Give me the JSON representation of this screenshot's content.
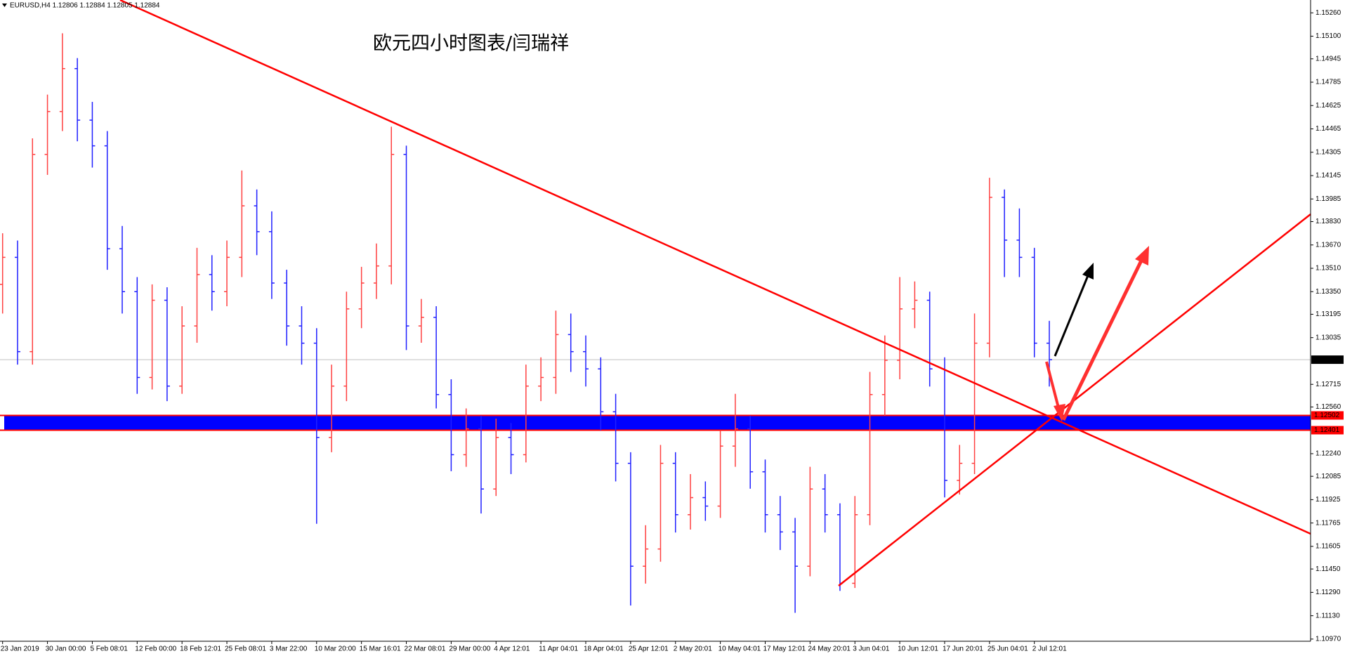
{
  "chart_data": {
    "type": "ohlc",
    "header": "EURUSD,H4  1.12806 1.12884 1.12805 1.12884",
    "annotation": "欧元四小时图表/闫瑞祥",
    "categories": [
      "23 Jan 2019",
      null,
      null,
      "30 Jan 00:00",
      null,
      null,
      "5 Feb 08:01",
      null,
      null,
      "12 Feb 00:00",
      null,
      null,
      "18 Feb 12:01",
      null,
      null,
      "25 Feb 08:01",
      null,
      null,
      "3 Mar 22:00",
      null,
      null,
      "10 Mar 20:00",
      null,
      null,
      "15 Mar 16:01",
      null,
      null,
      "22 Mar 08:01",
      null,
      null,
      "29 Mar 00:00",
      null,
      null,
      "4 Apr 12:01",
      null,
      null,
      "11 Apr 04:01",
      null,
      null,
      "18 Apr 04:01",
      null,
      null,
      "25 Apr 12:01",
      null,
      null,
      "2 May 20:01",
      null,
      null,
      "10 May 04:01",
      null,
      null,
      "17 May 12:01",
      null,
      null,
      "24 May 20:01",
      null,
      null,
      "3 Jun 04:01",
      null,
      null,
      "10 Jun 12:01",
      null,
      null,
      "17 Jun 20:01",
      null,
      null,
      "25 Jun 04:01",
      null,
      null,
      "2 Jul 12:01",
      null
    ],
    "open": [
      1.134,
      1.13585,
      1.12939,
      1.1429,
      1.14584,
      1.14878,
      1.14525,
      1.14349,
      1.13644,
      1.1335,
      1.12762,
      1.13291,
      1.12703,
      1.13115,
      1.13467,
      1.1335,
      1.13585,
      1.13938,
      1.13761,
      1.13409,
      1.13115,
      1.12997,
      1.12351,
      1.12703,
      1.13232,
      1.13409,
      1.13526,
      1.1429,
      1.13115,
      1.13174,
      1.12645,
      1.12233,
      1.1241,
      1.11998,
      1.12351,
      1.12233,
      1.12703,
      1.12762,
      1.13056,
      1.12939,
      1.12821,
      1.12527,
      1.12174,
      1.11469,
      1.11587,
      1.12174,
      1.11822,
      1.11939,
      1.11881,
      1.12292,
      1.1241,
      1.12116,
      1.11822,
      1.11704,
      1.11469,
      1.11998,
      1.11822,
      1.11352,
      1.11822,
      1.12645,
      1.1288,
      1.13232,
      1.13291,
      1.12821,
      1.12057,
      1.12174,
      1.12997,
      1.13996,
      1.13703,
      1.13585,
      1.12997
    ],
    "high": [
      1.1375,
      1.137,
      1.144,
      1.147,
      1.1512,
      1.1495,
      1.1465,
      1.1445,
      1.138,
      1.1345,
      1.134,
      1.1338,
      1.1325,
      1.1365,
      1.136,
      1.137,
      1.1418,
      1.1405,
      1.139,
      1.135,
      1.1325,
      1.131,
      1.1285,
      1.1335,
      1.1352,
      1.1368,
      1.1448,
      1.1435,
      1.133,
      1.1325,
      1.1275,
      1.1255,
      1.125,
      1.1248,
      1.1245,
      1.1285,
      1.129,
      1.1322,
      1.132,
      1.1305,
      1.129,
      1.1265,
      1.1225,
      1.1175,
      1.123,
      1.1225,
      1.121,
      1.1205,
      1.124,
      1.1265,
      1.125,
      1.122,
      1.1195,
      1.118,
      1.1215,
      1.121,
      1.119,
      1.1195,
      1.128,
      1.1305,
      1.1345,
      1.1342,
      1.1335,
      1.129,
      1.123,
      1.132,
      1.1413,
      1.1405,
      1.1392,
      1.1365,
      1.1315
    ],
    "low": [
      1.132,
      1.1285,
      1.1285,
      1.1415,
      1.1445,
      1.1438,
      1.142,
      1.135,
      1.132,
      1.1265,
      1.1268,
      1.126,
      1.1265,
      1.13,
      1.1322,
      1.1325,
      1.1345,
      1.136,
      1.133,
      1.1298,
      1.1285,
      1.1176,
      1.1225,
      1.126,
      1.131,
      1.133,
      1.134,
      1.1295,
      1.13,
      1.1255,
      1.1212,
      1.1215,
      1.1183,
      1.1195,
      1.121,
      1.1218,
      1.126,
      1.1265,
      1.128,
      1.127,
      1.124,
      1.1205,
      1.112,
      1.1135,
      1.115,
      1.117,
      1.1172,
      1.1178,
      1.118,
      1.1215,
      1.12,
      1.117,
      1.1158,
      1.1115,
      1.114,
      1.117,
      1.113,
      1.1132,
      1.1175,
      1.125,
      1.1275,
      1.131,
      1.127,
      1.1194,
      1.1196,
      1.121,
      1.129,
      1.1345,
      1.1345,
      1.129,
      1.127
    ],
    "close": [
      1.13585,
      1.12939,
      1.1429,
      1.14584,
      1.14878,
      1.14525,
      1.14349,
      1.13644,
      1.1335,
      1.12762,
      1.13291,
      1.12703,
      1.13115,
      1.13467,
      1.1335,
      1.13585,
      1.13938,
      1.13761,
      1.13409,
      1.13115,
      1.12997,
      1.12351,
      1.12703,
      1.13232,
      1.13409,
      1.13526,
      1.1429,
      1.13115,
      1.13174,
      1.12645,
      1.12233,
      1.1241,
      1.11998,
      1.12351,
      1.12233,
      1.12703,
      1.12762,
      1.13056,
      1.12939,
      1.12821,
      1.12527,
      1.12174,
      1.11469,
      1.11587,
      1.12174,
      1.11822,
      1.11939,
      1.11881,
      1.12292,
      1.1241,
      1.12116,
      1.11822,
      1.11704,
      1.11469,
      1.11998,
      1.11822,
      1.11352,
      1.11822,
      1.12645,
      1.1288,
      1.13232,
      1.13291,
      1.12821,
      1.12057,
      1.12174,
      1.12997,
      1.13996,
      1.13703,
      1.13585,
      1.12997,
      1.12884
    ],
    "up_color": "#ff4040",
    "down_color": "#2020ff",
    "ylim": [
      1.10955,
      1.15348
    ],
    "yticks": [
      {
        "value": 1.1526,
        "label": "1.15260"
      },
      {
        "value": 1.151,
        "label": "1.15100"
      },
      1.14945,
      1.14785,
      1.14625,
      1.14465,
      1.14305,
      1.14145,
      1.13985,
      {
        "value": 1.1383,
        "label": "1.13830"
      },
      {
        "value": 1.1367,
        "label": "1.13670"
      },
      {
        "value": 1.1351,
        "label": "1.13510"
      },
      {
        "value": 1.1335,
        "label": "1.13350"
      },
      1.13195,
      1.13035,
      1.12715,
      {
        "value": 1.1256,
        "label": "1.12560"
      },
      {
        "value": 1.1224,
        "label": "1.12240"
      },
      1.12085,
      1.11925,
      1.11765,
      1.11605,
      {
        "value": 1.1145,
        "label": "1.11450"
      },
      {
        "value": 1.1129,
        "label": "1.11290"
      },
      {
        "value": 1.1113,
        "label": "1.11130"
      },
      {
        "value": 1.1097,
        "label": "1.10970"
      }
    ],
    "grid": false,
    "current_price": 1.12884,
    "zone": {
      "upper": 1.12502,
      "lower": 1.12401,
      "color": "#0000ff",
      "border": "#ff0000"
    }
  }
}
